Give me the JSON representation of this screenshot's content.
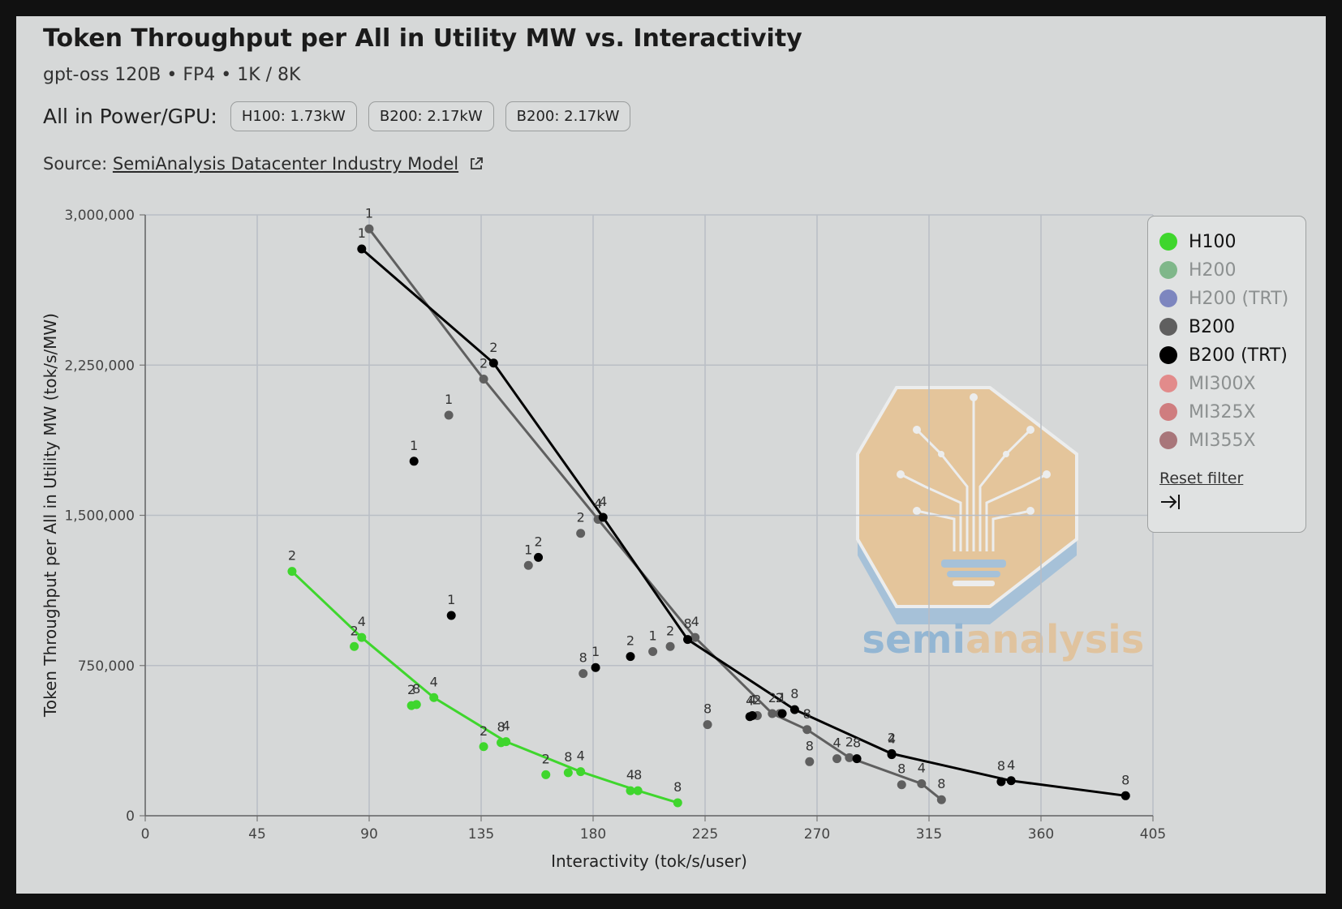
{
  "header": {
    "title": "Token Throughput per All in Utility MW vs. Interactivity",
    "subtitle": "gpt-oss 120B • FP4 • 1K / 8K",
    "power_label": "All in Power/GPU:",
    "power_chips": [
      "H100: 1.73kW",
      "B200: 2.17kW",
      "B200: 2.17kW"
    ],
    "source_prefix": "Source:",
    "source_link": "SemiAnalysis Datacenter Industry Model"
  },
  "legend": {
    "items": [
      {
        "label": "H100",
        "color": "#3fd62d",
        "active": true
      },
      {
        "label": "H200",
        "color": "#7fb78a",
        "active": false
      },
      {
        "label": "H200 (TRT)",
        "color": "#7d86bf",
        "active": false
      },
      {
        "label": "B200",
        "color": "#5f5f5f",
        "active": true
      },
      {
        "label": "B200 (TRT)",
        "color": "#000000",
        "active": true
      },
      {
        "label": "MI300X",
        "color": "#e28b8b",
        "active": false
      },
      {
        "label": "MI325X",
        "color": "#cf7d7f",
        "active": false
      },
      {
        "label": "MI355X",
        "color": "#a8767a",
        "active": false
      }
    ],
    "reset_label": "Reset filter",
    "collapse_icon": "collapse-right-icon"
  },
  "watermark": {
    "text_left": "semi",
    "text_right": "analysis",
    "icon": "lightbulb-circuit-logo"
  },
  "chart_data": {
    "type": "scatter",
    "xlabel": "Interactivity (tok/s/user)",
    "ylabel": "Token Throughput per All in Utility MW (tok/s/MW)",
    "xlim": [
      0,
      405
    ],
    "ylim": [
      0,
      3000000
    ],
    "xticks": [
      0,
      45,
      90,
      135,
      180,
      225,
      270,
      315,
      360,
      405
    ],
    "yticks": [
      0,
      750000,
      1500000,
      2250000,
      3000000
    ],
    "xtick_labels": [
      "0",
      "45",
      "90",
      "135",
      "180",
      "225",
      "270",
      "315",
      "360",
      "405"
    ],
    "ytick_labels": [
      "0",
      "750,000",
      "1,500,000",
      "2,250,000",
      "3,000,000"
    ],
    "grid": true,
    "legend_position": "right",
    "series": [
      {
        "name": "H100",
        "color": "#3fd62d",
        "frontier": [
          {
            "x": 59,
            "y": 1220000,
            "label": "2"
          },
          {
            "x": 87,
            "y": 890000,
            "label": "4"
          },
          {
            "x": 116,
            "y": 590000,
            "label": "4"
          },
          {
            "x": 145,
            "y": 370000,
            "label": "4"
          },
          {
            "x": 175,
            "y": 220000,
            "label": "4"
          },
          {
            "x": 198,
            "y": 125000,
            "label": "8"
          },
          {
            "x": 214,
            "y": 65000,
            "label": "8"
          }
        ],
        "points": [
          {
            "x": 84,
            "y": 845000,
            "label": "2"
          },
          {
            "x": 107,
            "y": 550000,
            "label": "2"
          },
          {
            "x": 109,
            "y": 555000,
            "label": "8"
          },
          {
            "x": 136,
            "y": 345000,
            "label": "2"
          },
          {
            "x": 143,
            "y": 365000,
            "label": "8"
          },
          {
            "x": 161,
            "y": 205000,
            "label": "2"
          },
          {
            "x": 170,
            "y": 215000,
            "label": "8"
          },
          {
            "x": 195,
            "y": 125000,
            "label": "4"
          }
        ]
      },
      {
        "name": "B200",
        "color": "#5f5f5f",
        "frontier": [
          {
            "x": 90,
            "y": 2930000,
            "label": "1"
          },
          {
            "x": 136,
            "y": 2180000,
            "label": "2"
          },
          {
            "x": 182,
            "y": 1480000,
            "label": "4"
          },
          {
            "x": 221,
            "y": 890000,
            "label": "4"
          },
          {
            "x": 252,
            "y": 510000,
            "label": "2"
          },
          {
            "x": 266,
            "y": 430000,
            "label": "8"
          },
          {
            "x": 283,
            "y": 290000,
            "label": "2"
          },
          {
            "x": 312,
            "y": 160000,
            "label": "4"
          },
          {
            "x": 320,
            "y": 80000,
            "label": "8"
          }
        ],
        "points": [
          {
            "x": 122,
            "y": 2000000,
            "label": "1"
          },
          {
            "x": 175,
            "y": 1410000,
            "label": "2"
          },
          {
            "x": 154,
            "y": 1250000,
            "label": "1"
          },
          {
            "x": 176,
            "y": 710000,
            "label": "8"
          },
          {
            "x": 204,
            "y": 820000,
            "label": "1"
          },
          {
            "x": 211,
            "y": 845000,
            "label": "2"
          },
          {
            "x": 226,
            "y": 455000,
            "label": "8"
          },
          {
            "x": 246,
            "y": 500000,
            "label": "2"
          },
          {
            "x": 255,
            "y": 510000,
            "label": "2"
          },
          {
            "x": 267,
            "y": 270000,
            "label": "8"
          },
          {
            "x": 278,
            "y": 285000,
            "label": "4"
          },
          {
            "x": 304,
            "y": 155000,
            "label": "8"
          }
        ]
      },
      {
        "name": "B200 (TRT)",
        "color": "#000000",
        "frontier": [
          {
            "x": 87,
            "y": 2830000,
            "label": "1"
          },
          {
            "x": 140,
            "y": 2260000,
            "label": "2"
          },
          {
            "x": 184,
            "y": 1490000,
            "label": "4"
          },
          {
            "x": 218,
            "y": 880000,
            "label": "8"
          },
          {
            "x": 261,
            "y": 530000,
            "label": "8"
          },
          {
            "x": 300,
            "y": 310000,
            "label": "2"
          },
          {
            "x": 348,
            "y": 175000,
            "label": "4"
          },
          {
            "x": 394,
            "y": 100000,
            "label": "8"
          }
        ],
        "points": [
          {
            "x": 108,
            "y": 1770000,
            "label": "1"
          },
          {
            "x": 158,
            "y": 1290000,
            "label": "2"
          },
          {
            "x": 123,
            "y": 1000000,
            "label": "1"
          },
          {
            "x": 181,
            "y": 740000,
            "label": "1"
          },
          {
            "x": 195,
            "y": 795000,
            "label": "2"
          },
          {
            "x": 243,
            "y": 495000,
            "label": "4"
          },
          {
            "x": 244,
            "y": 500000,
            "label": "4"
          },
          {
            "x": 256,
            "y": 510000,
            "label": "1"
          },
          {
            "x": 286,
            "y": 285000,
            "label": "8"
          },
          {
            "x": 300,
            "y": 305000,
            "label": "4"
          },
          {
            "x": 344,
            "y": 170000,
            "label": "8"
          }
        ]
      }
    ]
  }
}
